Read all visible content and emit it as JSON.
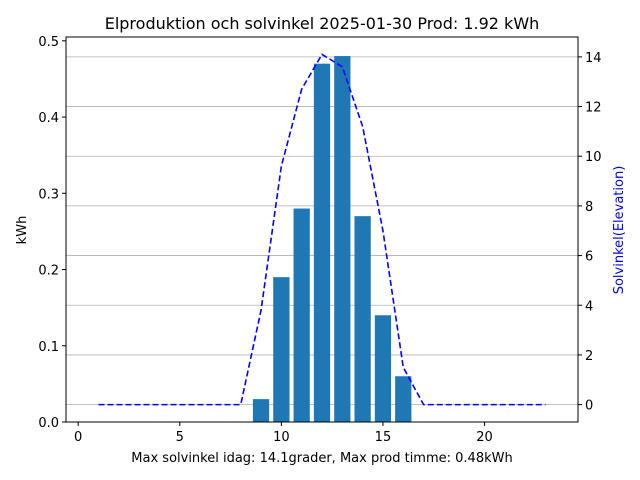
{
  "chart_data": {
    "type": "bar",
    "title": "Elproduktion och solvinkel 2025-01-30 Prod: 1.92 kWh",
    "xlabel": "Max solvinkel idag: 14.1grader, Max prod timme: 0.48kWh",
    "ylabel": "kWh",
    "y2label": "Solvinkel(Elevation)",
    "xlim": [
      -0.6,
      24.6
    ],
    "ylim": [
      0,
      0.505
    ],
    "y2lim": [
      -0.7,
      14.8
    ],
    "xticks": [
      0,
      5,
      10,
      15,
      20
    ],
    "yticks": [
      0.0,
      0.1,
      0.2,
      0.3,
      0.4,
      0.5
    ],
    "y2ticks": [
      0,
      2,
      4,
      6,
      8,
      10,
      12,
      14
    ],
    "grid": "horizontal lines at right-axis ticks",
    "bar_color": "#1f77b4",
    "line_color": "#0000ff",
    "bars": {
      "name": "kWh",
      "x": [
        9,
        10,
        11,
        12,
        13,
        14,
        15,
        16
      ],
      "values": [
        0.03,
        0.19,
        0.28,
        0.47,
        0.48,
        0.27,
        0.14,
        0.06
      ]
    },
    "line": {
      "name": "Solvinkel",
      "style": "dashed",
      "x": [
        1,
        2,
        3,
        4,
        5,
        6,
        7,
        8,
        9,
        10,
        11,
        12,
        13,
        14,
        15,
        16,
        17,
        18,
        19,
        20,
        21,
        22,
        23
      ],
      "values": [
        0,
        0,
        0,
        0,
        0,
        0,
        0,
        0,
        3.8,
        9.6,
        12.7,
        14.1,
        13.6,
        11.2,
        7.0,
        1.5,
        0,
        0,
        0,
        0,
        0,
        0,
        0
      ]
    }
  }
}
